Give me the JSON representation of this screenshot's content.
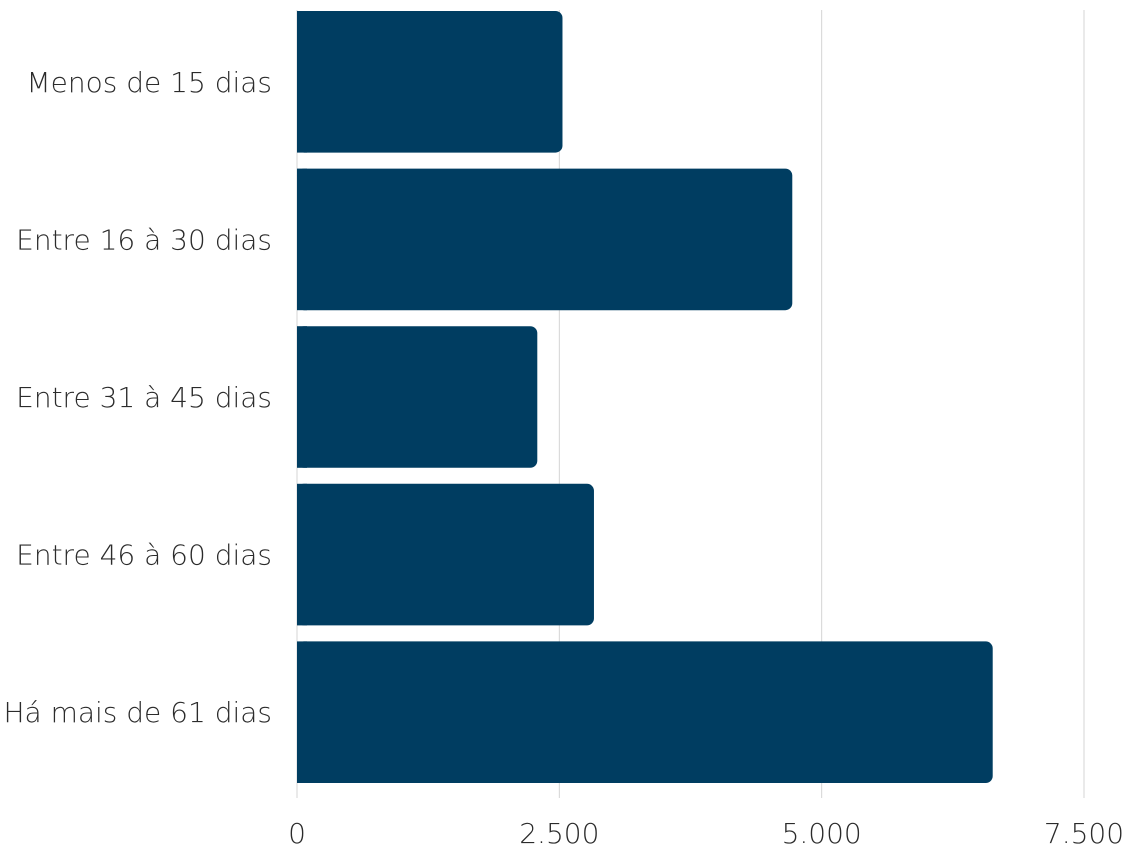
{
  "chart_data": {
    "type": "bar",
    "orientation": "horizontal",
    "categories": [
      "Menos de 15 dias",
      "Entre 16 à 30 dias",
      "Entre 31 à 45 dias",
      "Entre 46 à 60 dias",
      "Há mais de 61 dias"
    ],
    "values": [
      2530,
      4720,
      2290,
      2830,
      6630
    ],
    "xlim": [
      0,
      7500
    ],
    "x_ticks": [
      0,
      2500,
      5000,
      7500
    ],
    "x_tick_labels": [
      "0",
      "2.500",
      "5.000",
      "7.500"
    ],
    "grid": true,
    "title": "",
    "xlabel": "",
    "ylabel": "",
    "bar_color": "#003d61"
  }
}
